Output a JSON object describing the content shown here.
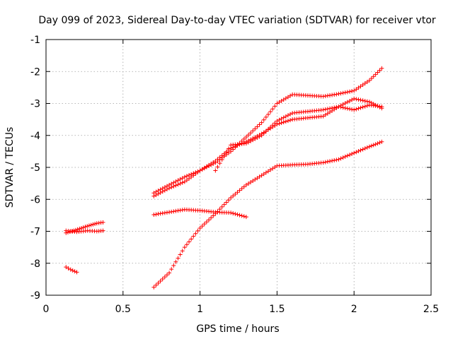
{
  "chart_data": {
    "type": "scatter",
    "title": "Day 099 of 2023, Sidereal Day-to-day VTEC variation (SDTVAR) for receiver vtor",
    "xlabel": "GPS time / hours",
    "ylabel": "SDTVAR / TECUs",
    "xlim": [
      0,
      2.5
    ],
    "ylim": [
      -9,
      -1
    ],
    "xticks": [
      0,
      0.5,
      1,
      1.5,
      2,
      2.5
    ],
    "xtick_labels": [
      "0",
      "0.5",
      "1",
      "1.5",
      "2",
      "2.5"
    ],
    "yticks": [
      -9,
      -8,
      -7,
      -6,
      -5,
      -4,
      -3,
      -2,
      -1
    ],
    "ytick_labels": [
      "-9",
      "-8",
      "-7",
      "-6",
      "-5",
      "-4",
      "-3",
      "-2",
      "-1"
    ],
    "grid": true,
    "marker": "+",
    "color": "#ff0000",
    "series": [
      {
        "x": [
          0.13,
          0.18,
          0.23,
          0.28,
          0.33,
          0.37
        ],
        "y": [
          -7.05,
          -6.98,
          -6.9,
          -6.82,
          -6.75,
          -6.72
        ]
      },
      {
        "x": [
          0.13,
          0.2,
          0.27,
          0.33,
          0.37
        ],
        "y": [
          -6.98,
          -7.02,
          -6.98,
          -7.0,
          -6.98
        ]
      },
      {
        "x": [
          0.13,
          0.16,
          0.2
        ],
        "y": [
          -8.12,
          -8.2,
          -8.28
        ]
      },
      {
        "x": [
          0.7,
          0.8,
          0.9,
          1.0,
          1.1,
          1.2,
          1.3,
          1.4,
          1.5,
          1.6,
          1.7,
          1.8,
          1.9,
          2.0,
          2.1,
          2.18
        ],
        "y": [
          -5.8,
          -5.55,
          -5.3,
          -5.1,
          -4.85,
          -4.5,
          -4.05,
          -3.6,
          -3.0,
          -2.72,
          -2.75,
          -2.78,
          -2.7,
          -2.6,
          -2.28,
          -1.9
        ]
      },
      {
        "x": [
          0.7,
          0.8,
          0.9,
          1.0,
          1.1,
          1.2,
          1.3,
          1.4,
          1.5,
          1.6,
          1.7,
          1.8,
          1.9,
          2.0,
          2.1,
          2.18
        ],
        "y": [
          -5.9,
          -5.65,
          -5.45,
          -5.1,
          -4.8,
          -4.4,
          -4.2,
          -3.95,
          -3.65,
          -3.5,
          -3.45,
          -3.4,
          -3.1,
          -2.85,
          -2.95,
          -3.15
        ]
      },
      {
        "x": [
          1.1,
          1.2,
          1.3,
          1.4,
          1.5,
          1.6,
          1.7,
          1.8,
          1.9,
          2.0,
          2.1,
          2.18
        ],
        "y": [
          -5.1,
          -4.3,
          -4.25,
          -4.0,
          -3.55,
          -3.3,
          -3.25,
          -3.2,
          -3.1,
          -3.2,
          -3.05,
          -3.1
        ]
      },
      {
        "x": [
          0.7,
          0.8,
          0.9,
          1.0,
          1.1,
          1.2,
          1.3
        ],
        "y": [
          -6.48,
          -6.4,
          -6.32,
          -6.35,
          -6.4,
          -6.42,
          -6.55
        ]
      },
      {
        "x": [
          0.7,
          0.8,
          0.9,
          1.0,
          1.1,
          1.2,
          1.3,
          1.4,
          1.5,
          1.6,
          1.7,
          1.8,
          1.9,
          2.0,
          2.1,
          2.18
        ],
        "y": [
          -8.75,
          -8.3,
          -7.5,
          -6.9,
          -6.45,
          -5.95,
          -5.55,
          -5.25,
          -4.95,
          -4.92,
          -4.9,
          -4.85,
          -4.75,
          -4.55,
          -4.35,
          -4.2
        ]
      }
    ]
  }
}
